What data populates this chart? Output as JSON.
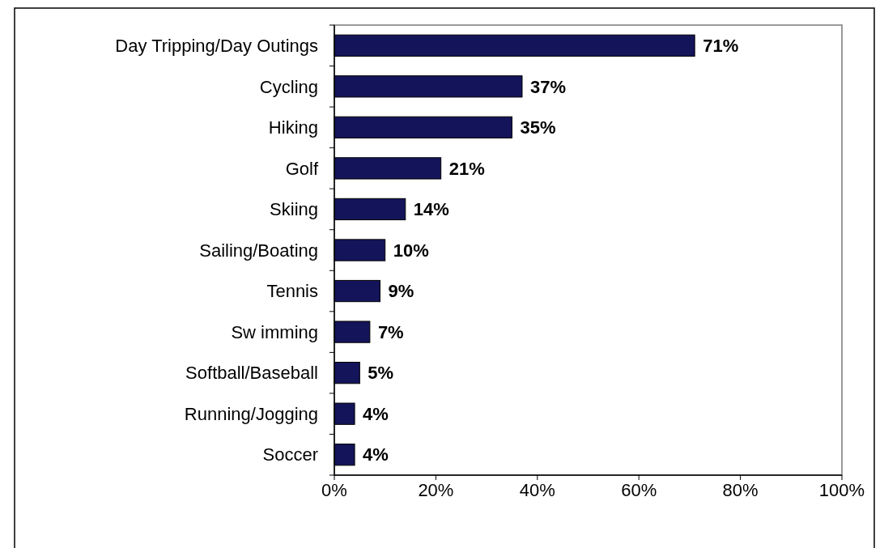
{
  "chart_data": {
    "type": "bar",
    "orientation": "horizontal",
    "categories": [
      "Day Tripping/Day Outings",
      "Cycling",
      "Hiking",
      "Golf",
      "Skiing",
      "Sailing/Boating",
      "Tennis",
      "Sw imming",
      "Softball/Baseball",
      "Running/Jogging",
      "Soccer"
    ],
    "values": [
      71,
      37,
      35,
      21,
      14,
      10,
      9,
      7,
      5,
      4,
      4
    ],
    "value_labels": [
      "71%",
      "37%",
      "35%",
      "21%",
      "14%",
      "10%",
      "9%",
      "7%",
      "5%",
      "4%",
      "4%"
    ],
    "color": "#14145a",
    "xlim": [
      0,
      100
    ],
    "xticks": [
      {
        "value": 0,
        "label": "0%"
      },
      {
        "value": 20,
        "label": "20%"
      },
      {
        "value": 40,
        "label": "40%"
      },
      {
        "value": 60,
        "label": "60%"
      },
      {
        "value": 80,
        "label": "80%"
      },
      {
        "value": 100,
        "label": "100%"
      }
    ],
    "grid": false
  }
}
